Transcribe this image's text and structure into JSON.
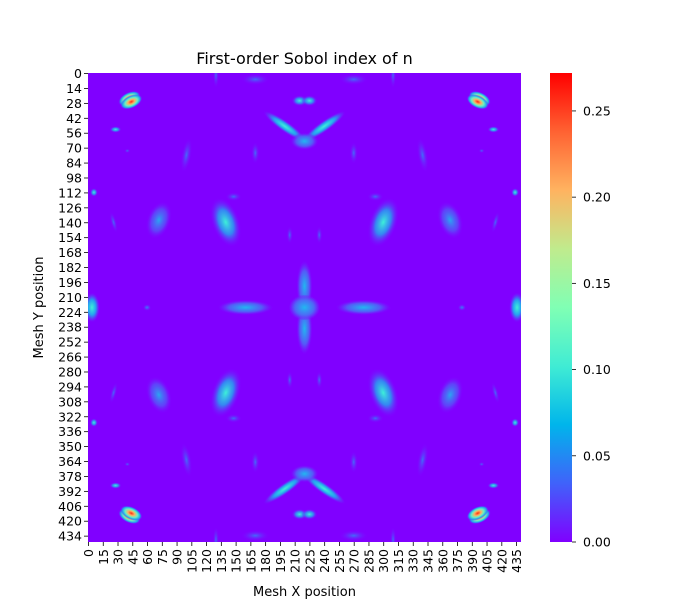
{
  "chart_data": {
    "type": "heatmap",
    "title": "First-order Sobol index of n",
    "xlabel": "Mesh X position",
    "ylabel": "Mesh Y position",
    "x_ticks": [
      "0",
      "15",
      "30",
      "45",
      "60",
      "75",
      "90",
      "105",
      "120",
      "135",
      "150",
      "165",
      "180",
      "195",
      "210",
      "225",
      "240",
      "255",
      "270",
      "285",
      "300",
      "315",
      "330",
      "345",
      "360",
      "375",
      "390",
      "405",
      "420",
      "435"
    ],
    "y_ticks": [
      "0",
      "14",
      "28",
      "42",
      "56",
      "70",
      "84",
      "98",
      "112",
      "126",
      "140",
      "154",
      "168",
      "182",
      "196",
      "210",
      "224",
      "238",
      "252",
      "266",
      "280",
      "294",
      "308",
      "322",
      "336",
      "350",
      "364",
      "378",
      "392",
      "406",
      "420",
      "434"
    ],
    "x_range": [
      0,
      440
    ],
    "y_range": [
      0,
      440
    ],
    "colormap": "rainbow",
    "colorbar": {
      "min": 0.0,
      "max": 0.272,
      "ticks": [
        "0.00",
        "0.05",
        "0.10",
        "0.15",
        "0.20",
        "0.25"
      ]
    },
    "background_value": 0.0,
    "features_note_values": [
      {
        "region": "four diagonal corner arcs",
        "value": 0.27
      },
      {
        "region": "central cross pattern",
        "value": 0.04
      },
      {
        "region": "edge midpoints",
        "value": 0.08
      }
    ]
  }
}
